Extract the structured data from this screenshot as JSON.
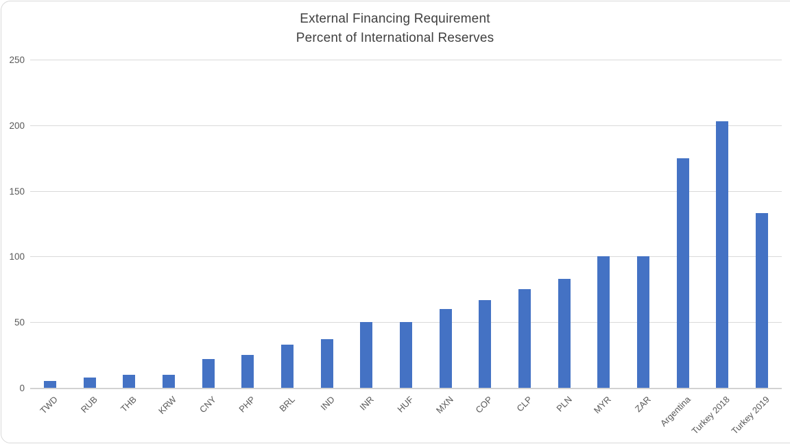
{
  "chart_data": {
    "type": "bar",
    "title": "External Financing Requirement",
    "subtitle": "Percent of International Reserves",
    "categories": [
      "TWD",
      "RUB",
      "THB",
      "KRW",
      "CNY",
      "PHP",
      "BRL",
      "IND",
      "INR",
      "HUF",
      "MXN",
      "COP",
      "CLP",
      "PLN",
      "MYR",
      "ZAR",
      "Argentina",
      "Turkey 2018",
      "Turkey 2019"
    ],
    "values": [
      5,
      8,
      10,
      10,
      22,
      25,
      33,
      37,
      50,
      50,
      60,
      67,
      75,
      83,
      100,
      100,
      175,
      203,
      133
    ],
    "xlabel": "",
    "ylabel": "",
    "ylim": [
      0,
      250
    ],
    "yticks": [
      0,
      50,
      100,
      150,
      200,
      250
    ],
    "legend": "none",
    "grid": "horizontal",
    "colors": {
      "bar": "#4472C4",
      "gridline": "#D9D9D9",
      "axis_line": "#D2D2D2",
      "tick_label": "#595959",
      "title": "#404040",
      "border": "#D9D9D9"
    }
  }
}
